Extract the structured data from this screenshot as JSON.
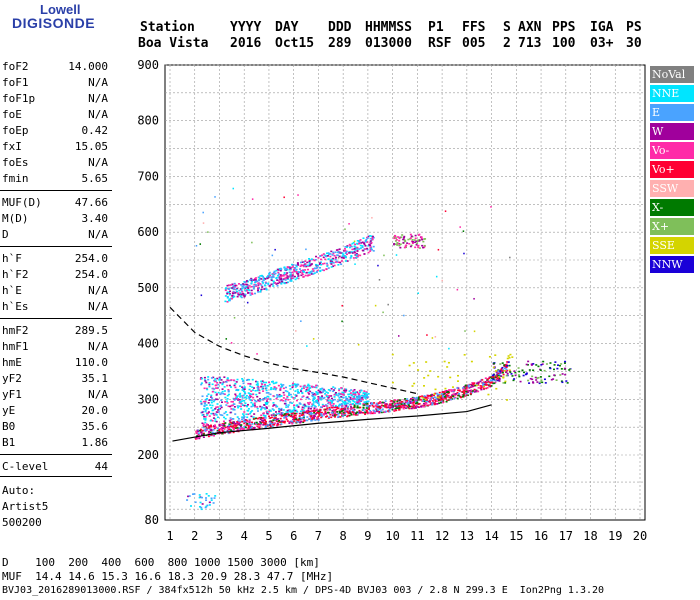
{
  "logo": {
    "top": "Lowell",
    "main": "DIGISONDE"
  },
  "header": {
    "labels": [
      "Station",
      "YYYY",
      "DAY",
      "DDD",
      "HHMMSS",
      "P1",
      "FFS",
      "S",
      "AXN",
      "PPS",
      "IGA",
      "PS"
    ],
    "values": [
      "Boa Vista",
      "2016",
      "Oct15",
      "289",
      "013000",
      "RSF",
      "005",
      "2",
      "713",
      "100",
      "03+",
      "30"
    ]
  },
  "params": [
    {
      "k": "foF2",
      "v": "14.000"
    },
    {
      "k": "foF1",
      "v": "N/A"
    },
    {
      "k": "foF1p",
      "v": "N/A"
    },
    {
      "k": "foE",
      "v": "N/A"
    },
    {
      "k": "foEp",
      "v": "0.42"
    },
    {
      "k": "fxI",
      "v": "15.05"
    },
    {
      "k": "foEs",
      "v": "N/A"
    },
    {
      "k": "fmin",
      "v": "5.65"
    },
    {
      "k": "MUF(D)",
      "v": "47.66"
    },
    {
      "k": "M(D)",
      "v": "3.40"
    },
    {
      "k": "D",
      "v": "N/A"
    },
    {
      "k": "h`F",
      "v": "254.0"
    },
    {
      "k": "h`F2",
      "v": "254.0"
    },
    {
      "k": "h`E",
      "v": "N/A"
    },
    {
      "k": "h`Es",
      "v": "N/A"
    },
    {
      "k": "hmF2",
      "v": "289.5"
    },
    {
      "k": "hmF1",
      "v": "N/A"
    },
    {
      "k": "hmE",
      "v": "110.0"
    },
    {
      "k": "yF2",
      "v": "35.1"
    },
    {
      "k": "yF1",
      "v": "N/A"
    },
    {
      "k": "yE",
      "v": "20.0"
    },
    {
      "k": "B0",
      "v": "35.6"
    },
    {
      "k": "B1",
      "v": "1.86"
    },
    {
      "k": "C-level",
      "v": "44"
    }
  ],
  "auto": {
    "line1": "Auto:",
    "line2": "Artist5",
    "line3": "500200"
  },
  "legend": [
    {
      "label": "NoVal",
      "color": "#808080"
    },
    {
      "label": "NNE",
      "color": "#00e5ff"
    },
    {
      "label": "E",
      "color": "#4aa3ff"
    },
    {
      "label": "W",
      "color": "#a0009c"
    },
    {
      "label": "Vo-",
      "color": "#ff2aa8"
    },
    {
      "label": "Vo+",
      "color": "#ff0033"
    },
    {
      "label": "SSW",
      "color": "#ffb0b0"
    },
    {
      "label": "X-",
      "color": "#007a00"
    },
    {
      "label": "X+",
      "color": "#7fbf5a"
    },
    {
      "label": "SSE",
      "color": "#d4d400"
    },
    {
      "label": "NNW",
      "color": "#1a00d8"
    }
  ],
  "footer": {
    "line1": "D    100  200  400  600  800 1000 1500 3000 [km]",
    "line2": "MUF  14.4 14.6 15.3 16.6 18.3 20.9 28.3 47.7 [MHz]",
    "line3": "BVJ03_2016289013000.RSF / 384fx512h 50 kHz 2.5 km / DPS-4D BVJ03 003 / 2.8 N 299.3 E  Ion2Png 1.3.20"
  },
  "chart_data": {
    "type": "scatter",
    "x_ticks": [
      "1",
      "2",
      "3",
      "4",
      "5",
      "6",
      "7",
      "8",
      "9",
      "10",
      "11",
      "12",
      "13",
      "14",
      "15",
      "16",
      "17",
      "18",
      "19",
      "20"
    ],
    "y_ticks": [
      "80",
      "200",
      "300",
      "400",
      "500",
      "600",
      "700",
      "800",
      "900"
    ],
    "xlim": [
      1,
      20
    ],
    "ylim": [
      80,
      900
    ],
    "traces": [
      {
        "name": "F2 trace",
        "color": "#ff0033",
        "points": [
          [
            2.0,
            240
          ],
          [
            3,
            248
          ],
          [
            4,
            255
          ],
          [
            5,
            262
          ],
          [
            6,
            268
          ],
          [
            7,
            274
          ],
          [
            8,
            280
          ],
          [
            9,
            285
          ],
          [
            10,
            290
          ],
          [
            11,
            296
          ],
          [
            12,
            305
          ],
          [
            13,
            318
          ],
          [
            14,
            335
          ],
          [
            14.6,
            360
          ]
        ]
      },
      {
        "name": "multi-hop",
        "color": "#a0009c",
        "points": [
          [
            3.2,
            490
          ],
          [
            4,
            500
          ],
          [
            5,
            515
          ],
          [
            6,
            530
          ],
          [
            7,
            545
          ],
          [
            8,
            560
          ],
          [
            9,
            580
          ],
          [
            10,
            590
          ],
          [
            11,
            600
          ]
        ]
      }
    ],
    "profile_curve": [
      [
        1.1,
        225
      ],
      [
        3,
        240
      ],
      [
        5,
        248
      ],
      [
        7,
        257
      ],
      [
        9,
        264
      ],
      [
        11,
        270
      ],
      [
        13,
        278
      ],
      [
        14,
        290
      ]
    ],
    "muf_curve": [
      [
        1,
        465
      ],
      [
        2,
        420
      ],
      [
        3,
        395
      ],
      [
        4,
        378
      ],
      [
        5,
        365
      ],
      [
        6,
        355
      ],
      [
        7,
        348
      ],
      [
        8,
        340
      ],
      [
        9,
        330
      ],
      [
        10,
        320
      ],
      [
        11,
        310
      ]
    ]
  }
}
